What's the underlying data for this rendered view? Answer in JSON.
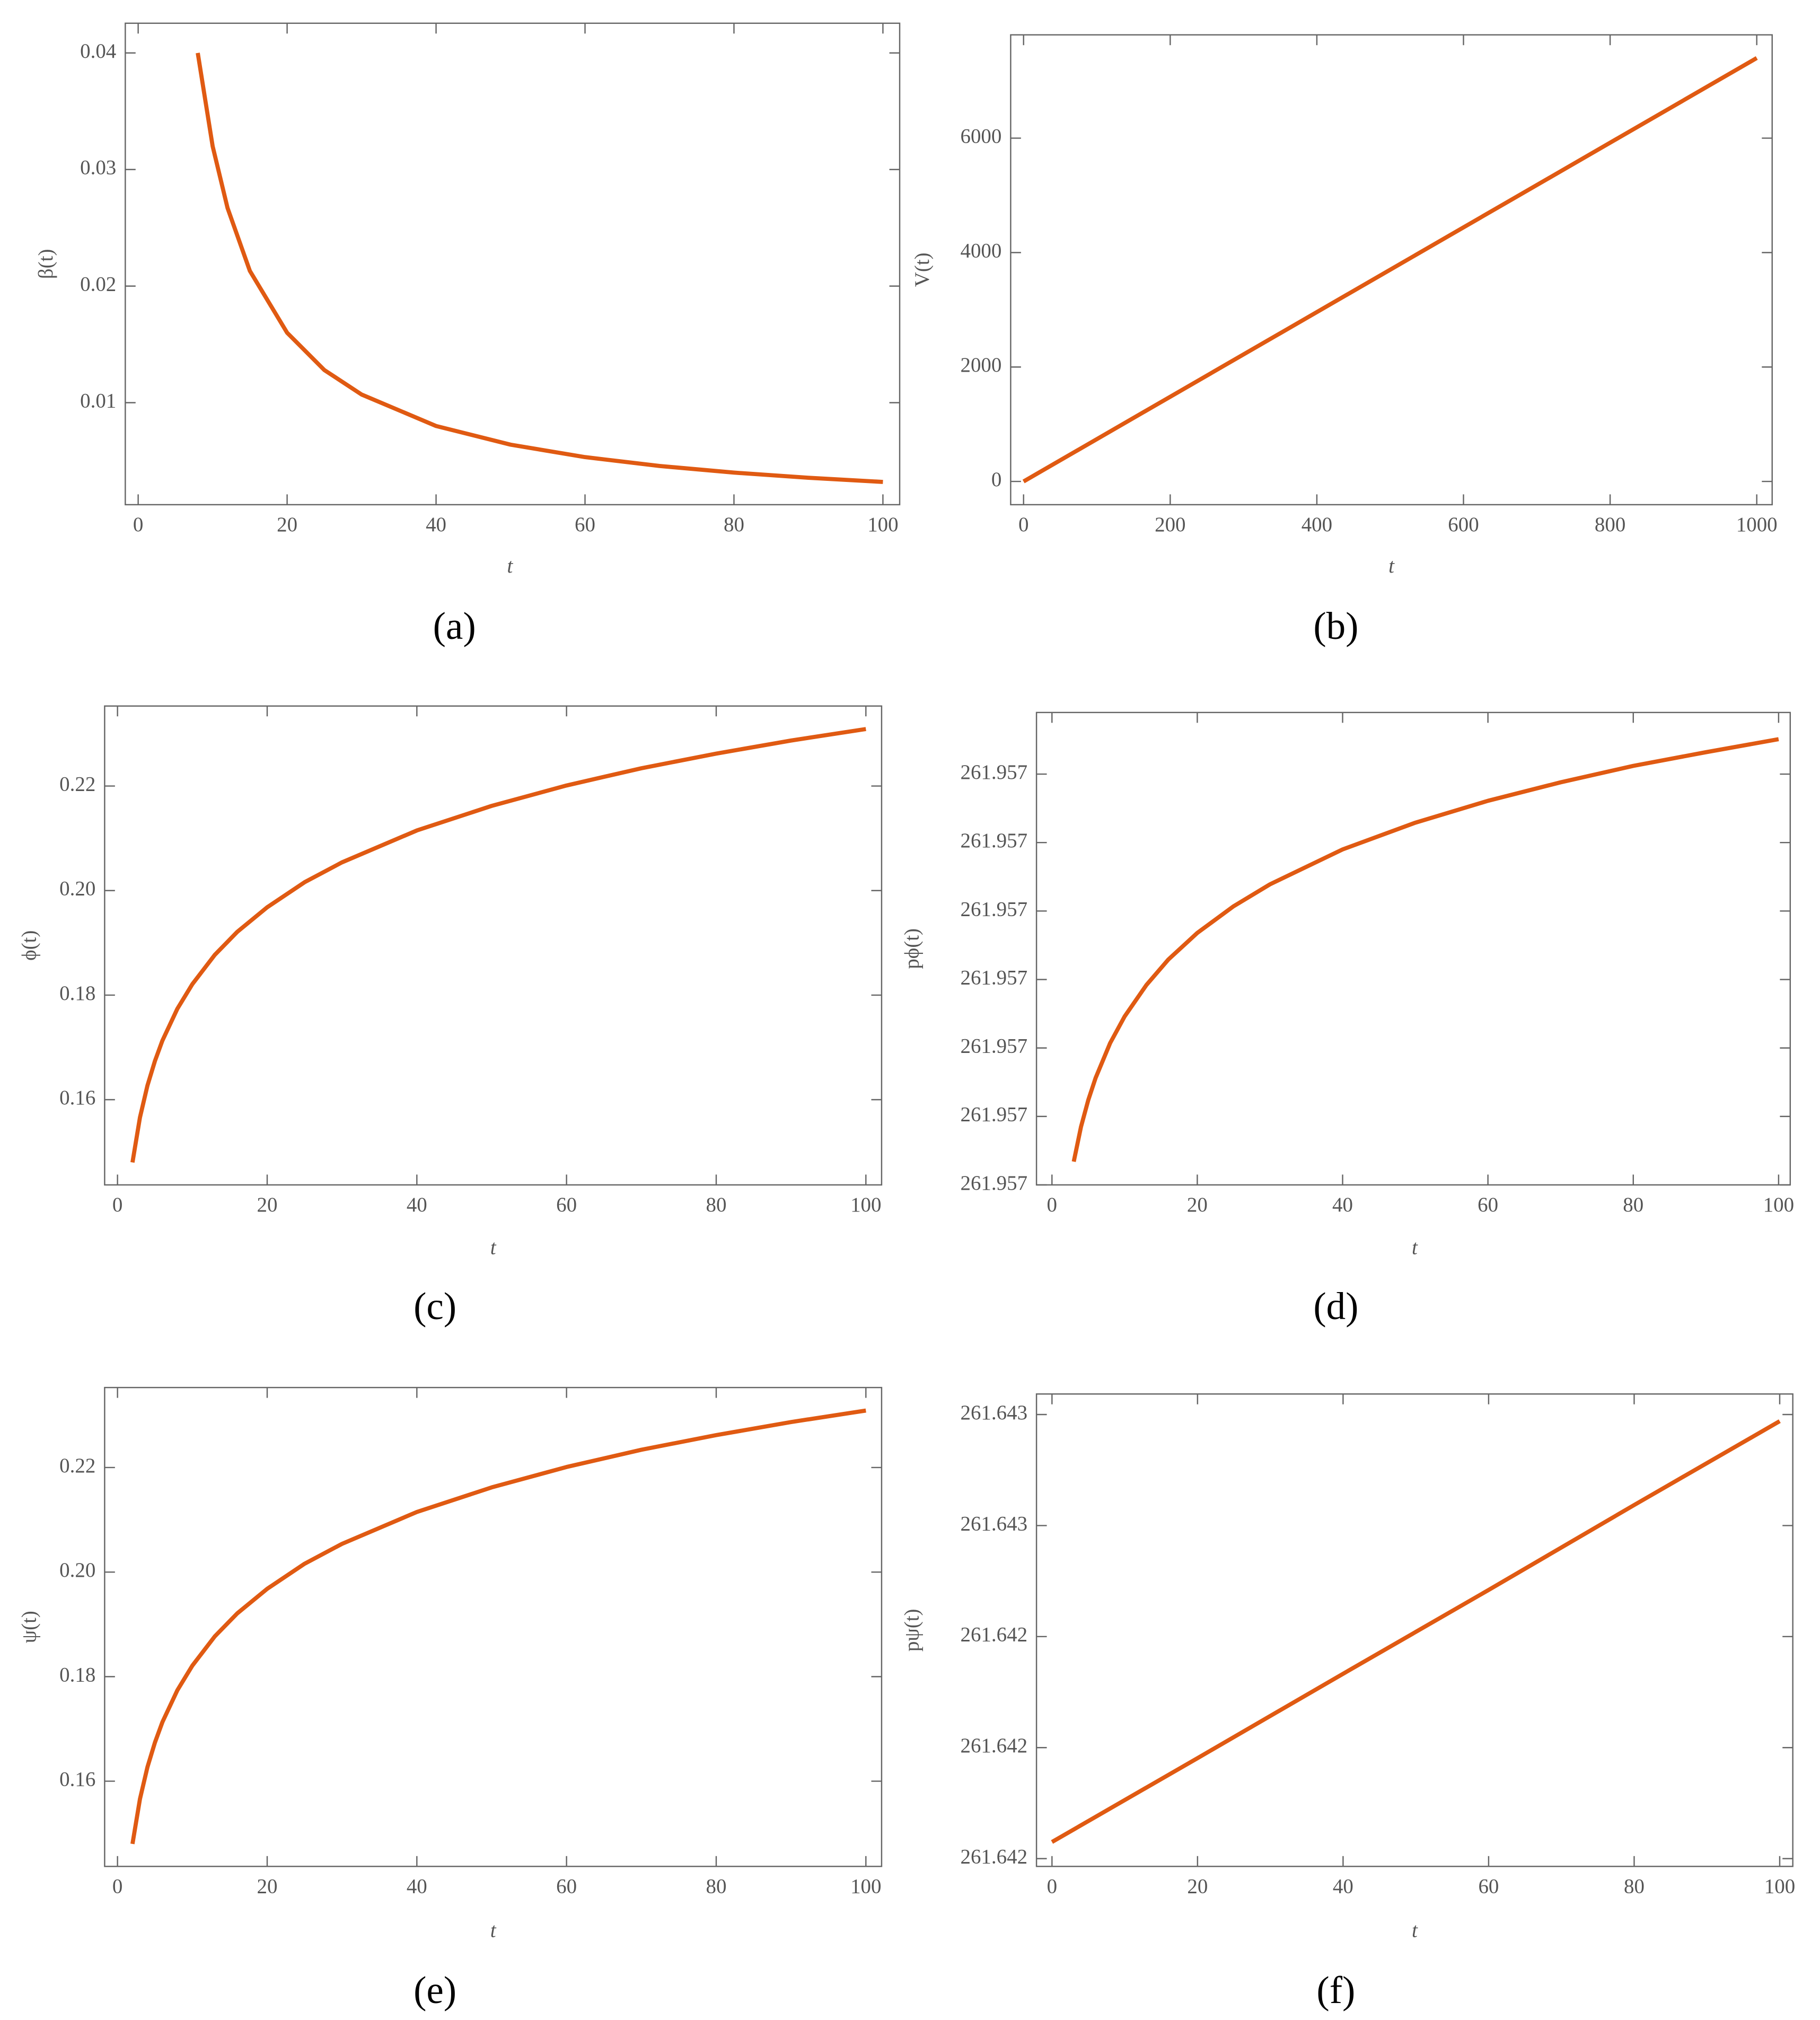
{
  "chart_data": [
    {
      "type": "line",
      "caption": "(a)",
      "xlabel": "t",
      "ylabel": "β(t)",
      "color": "#e05a12",
      "x": [
        8,
        10,
        12,
        15,
        20,
        25,
        30,
        40,
        50,
        60,
        70,
        80,
        90,
        100
      ],
      "values": [
        0.04,
        0.032,
        0.0267,
        0.0213,
        0.016,
        0.0128,
        0.0107,
        0.008,
        0.0064,
        0.00533,
        0.00457,
        0.004,
        0.00356,
        0.0032
      ],
      "xlim": [
        -1.73,
        102.25
      ],
      "ylim": [
        0.00125,
        0.04255
      ],
      "xticks": [
        0,
        20,
        40,
        60,
        80,
        100
      ],
      "yticks": [
        0.01,
        0.02,
        0.03,
        0.04
      ]
    },
    {
      "type": "line",
      "caption": "(b)",
      "xlabel": "t",
      "ylabel": "V(t)",
      "color": "#e05a12",
      "x": [
        0,
        200,
        400,
        600,
        800,
        1000
      ],
      "values": [
        0,
        1480,
        2960,
        4440,
        5920,
        7400
      ],
      "xlim": [
        -17.6,
        1021
      ],
      "ylim": [
        -406,
        7805
      ],
      "xticks": [
        0,
        200,
        400,
        600,
        800,
        1000
      ],
      "yticks": [
        0,
        2000,
        4000,
        6000
      ]
    },
    {
      "type": "line",
      "caption": "(c)",
      "xlabel": "t",
      "ylabel": "ϕ(t)",
      "color": "#e05a12",
      "x": [
        2,
        3,
        4,
        5,
        6,
        8,
        10,
        13,
        16,
        20,
        25,
        30,
        40,
        50,
        60,
        70,
        80,
        90,
        100
      ],
      "values": [
        0.148,
        0.1566,
        0.1627,
        0.1674,
        0.1713,
        0.1774,
        0.1821,
        0.1877,
        0.1921,
        0.1968,
        0.2016,
        0.2054,
        0.2115,
        0.2162,
        0.2201,
        0.2234,
        0.2262,
        0.2287,
        0.2309
      ],
      "xlim": [
        -1.72,
        102.1
      ],
      "ylim": [
        0.1437,
        0.2353
      ],
      "xticks": [
        0,
        20,
        40,
        60,
        80,
        100
      ],
      "yticks": [
        0.16,
        0.18,
        {
          "value": 0.2,
          "label": "0.20"
        },
        0.22
      ]
    },
    {
      "type": "line",
      "caption": "(d)",
      "xlabel": "t",
      "ylabel": "pϕ(t)",
      "color": "#e05a12",
      "x": [
        3,
        4,
        5,
        6,
        8,
        10,
        13,
        16,
        20,
        25,
        30,
        40,
        50,
        60,
        70,
        80,
        90,
        100
      ],
      "values": [
        261.9570034,
        261.9570085,
        261.9570124,
        261.9570156,
        261.9570207,
        261.9570246,
        261.9570292,
        261.9570329,
        261.9570368,
        261.9570407,
        261.9570439,
        261.957049,
        261.9570529,
        261.9570561,
        261.9570588,
        261.9570612,
        261.9570632,
        261.9570651
      ],
      "xlim": [
        -2.13,
        101.6
      ],
      "ylim": [
        261.957,
        261.957069
      ],
      "xticks": [
        0,
        20,
        40,
        60,
        80,
        100
      ],
      "yticks": [
        {
          "value": 261.957,
          "label": "261.957"
        },
        {
          "value": 261.95701,
          "label": "261.957"
        },
        {
          "value": 261.95702,
          "label": "261.957"
        },
        {
          "value": 261.95703,
          "label": "261.957"
        },
        {
          "value": 261.95704,
          "label": "261.957"
        },
        {
          "value": 261.95705,
          "label": "261.957"
        },
        {
          "value": 261.95706,
          "label": "261.957"
        }
      ]
    },
    {
      "type": "line",
      "caption": "(e)",
      "xlabel": "t",
      "ylabel": "ψ(t)",
      "color": "#e05a12",
      "x": [
        2,
        3,
        4,
        5,
        6,
        8,
        10,
        13,
        16,
        20,
        25,
        30,
        40,
        50,
        60,
        70,
        80,
        90,
        100
      ],
      "values": [
        0.148,
        0.1566,
        0.1627,
        0.1674,
        0.1713,
        0.1774,
        0.1821,
        0.1877,
        0.1921,
        0.1968,
        0.2016,
        0.2054,
        0.2115,
        0.2162,
        0.2201,
        0.2234,
        0.2262,
        0.2287,
        0.2309
      ],
      "xlim": [
        -1.72,
        102.1
      ],
      "ylim": [
        0.1437,
        0.2353
      ],
      "xticks": [
        0,
        20,
        40,
        60,
        80,
        100
      ],
      "yticks": [
        0.16,
        0.18,
        {
          "value": 0.2,
          "label": "0.20"
        },
        0.22
      ]
    },
    {
      "type": "line",
      "caption": "(f)",
      "xlabel": "t",
      "ylabel": "pψ(t)",
      "color": "#e05a12",
      "x": [
        0,
        20,
        40,
        60,
        80,
        100
      ],
      "values": [
        261.64208,
        261.642231,
        261.642383,
        261.642534,
        261.642687,
        261.642838
      ],
      "xlim": [
        -2.13,
        101.8
      ],
      "ylim": [
        261.642036,
        261.642887
      ],
      "xticks": [
        0,
        20,
        40,
        60,
        80,
        100
      ],
      "yticks": [
        {
          "value": 261.64205,
          "label": "261.642"
        },
        {
          "value": 261.64225,
          "label": "261.642"
        },
        {
          "value": 261.64245,
          "label": "261.642"
        },
        {
          "value": 261.64265,
          "label": "261.643"
        },
        {
          "value": 261.64285,
          "label": "261.643"
        }
      ]
    }
  ]
}
